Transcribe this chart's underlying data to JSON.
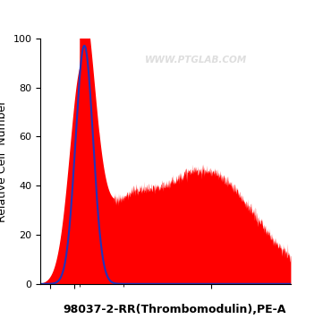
{
  "title": "98037-2-RR(Thrombomodulin),PE-A",
  "ylabel": "Relative Cell  Number",
  "ylim": [
    0,
    100
  ],
  "yticks": [
    0,
    20,
    40,
    60,
    80,
    100
  ],
  "background_color": "#ffffff",
  "plot_bg_color": "#ffffff",
  "watermark": "WWW.PTGLAB.COM",
  "blue_line_color": "#2233bb",
  "red_fill_color": "#ff0000",
  "title_fontsize": 9,
  "ylabel_fontsize": 9,
  "tick_fontsize": 8,
  "linthresh": 1000,
  "xlim": [
    -700,
    80000
  ]
}
